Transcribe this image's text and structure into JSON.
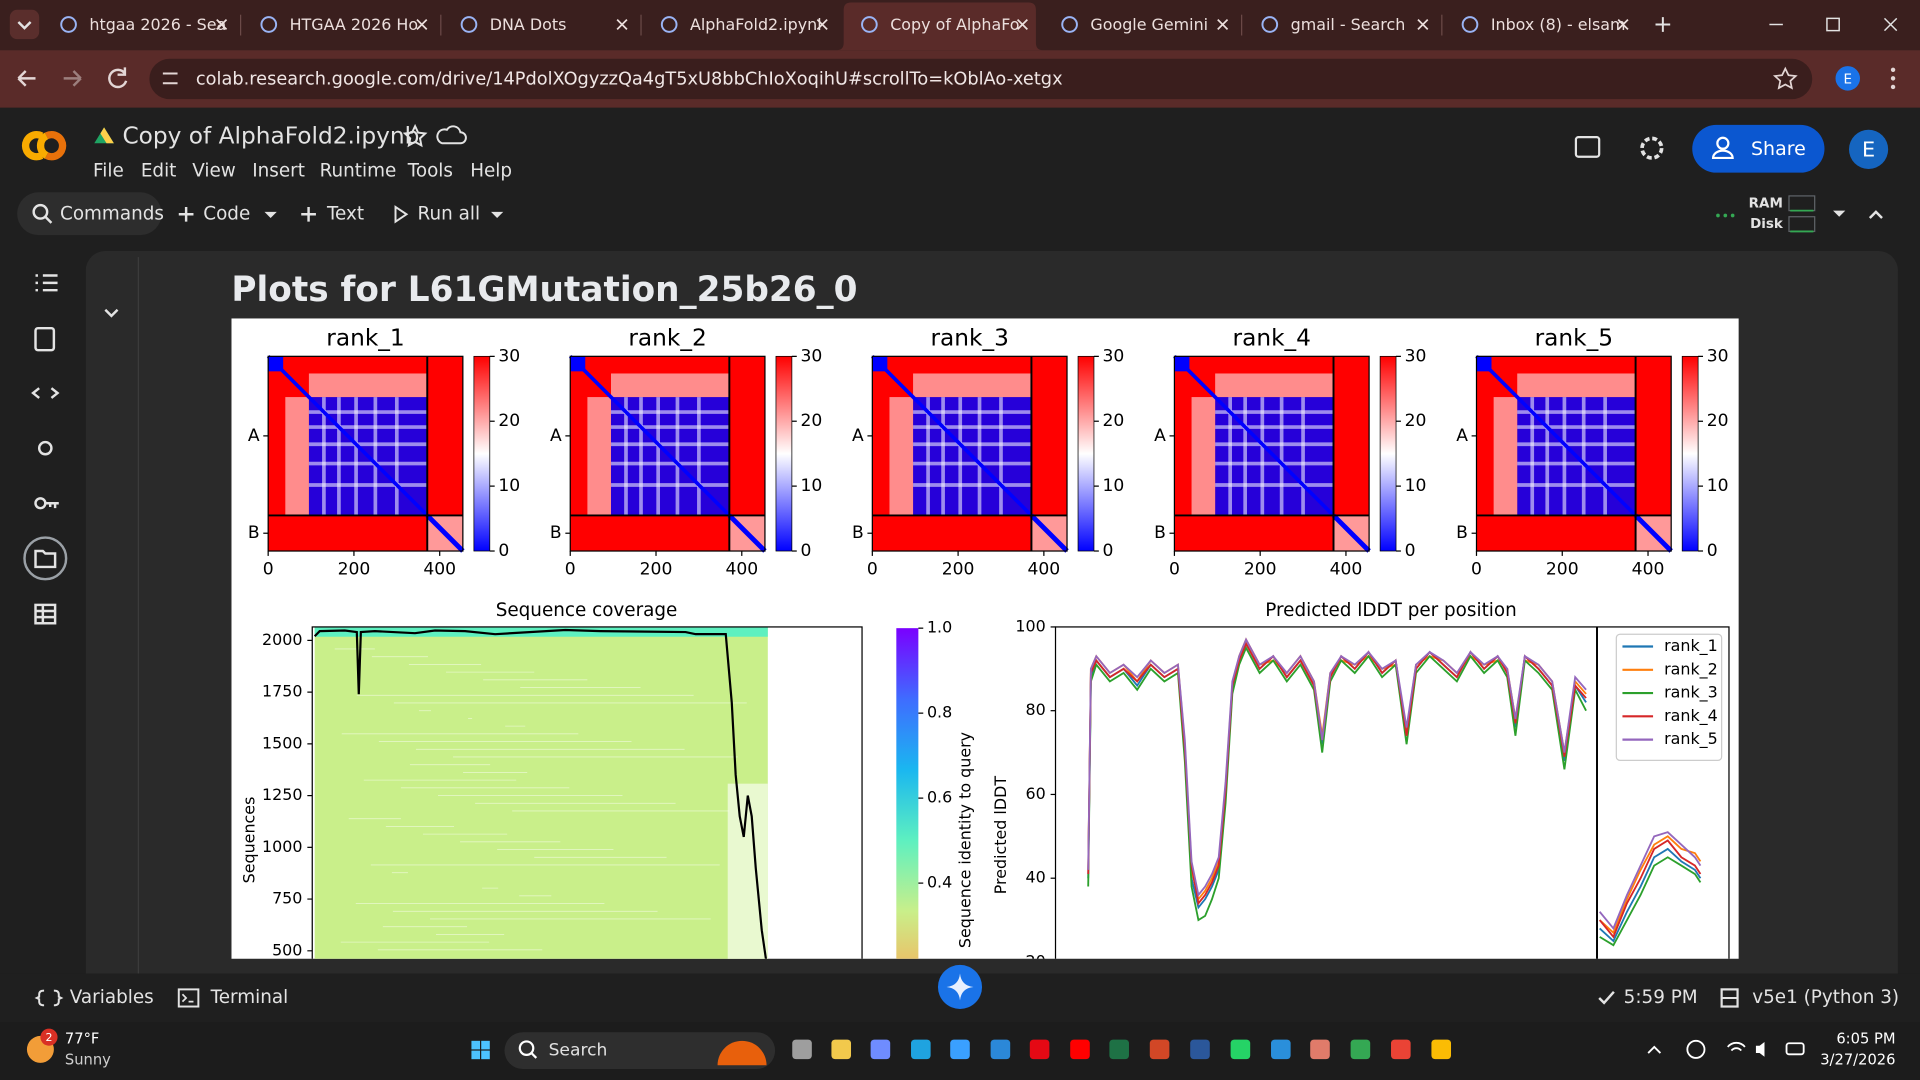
{
  "browser": {
    "tabs": [
      {
        "title": "htgaa 2026 - Sea"
      },
      {
        "title": "HTGAA 2026 Ho"
      },
      {
        "title": "DNA Dots"
      },
      {
        "title": "AlphaFold2.ipynl"
      },
      {
        "title": "Copy of AlphaFo",
        "active": true
      },
      {
        "title": "Google Gemini"
      },
      {
        "title": "gmail - Search"
      },
      {
        "title": "Inbox (8) - elsam"
      }
    ],
    "url": "colab.research.google.com/drive/14PdolXOgyzzQa4gT5xU8bbChIoXoqihU#scrollTo=kOblAo-xetgx",
    "profile": "E"
  },
  "colab": {
    "title": "Copy of AlphaFold2.ipynb",
    "menu": [
      "File",
      "Edit",
      "View",
      "Insert",
      "Runtime",
      "Tools",
      "Help"
    ],
    "share": "Share",
    "avatar": "E",
    "toolbar": {
      "commands": "Commands",
      "code": "Code",
      "text": "Text",
      "run_all": "Run all",
      "ram": "RAM",
      "disk": "Disk"
    }
  },
  "output": {
    "heading": "Plots for L61GMutation_25b26_0"
  },
  "chart_data": [
    {
      "type": "heatmap",
      "title": "rank_1",
      "xlim": [
        0,
        454
      ],
      "xticks": [
        0,
        200,
        400
      ],
      "row_labels": [
        "A",
        "B"
      ],
      "chain_break": 371,
      "colorbar": {
        "ylim": [
          0,
          30
        ],
        "yticks": [
          0,
          10,
          20,
          30
        ],
        "colors": [
          "#0000ff",
          "#ffffff",
          "#ff0000"
        ]
      }
    },
    {
      "type": "heatmap",
      "title": "rank_2",
      "xlim": [
        0,
        454
      ],
      "xticks": [
        0,
        200,
        400
      ],
      "row_labels": [
        "A",
        "B"
      ],
      "chain_break": 371,
      "colorbar": {
        "ylim": [
          0,
          30
        ],
        "yticks": [
          0,
          10,
          20,
          30
        ],
        "colors": [
          "#0000ff",
          "#ffffff",
          "#ff0000"
        ]
      }
    },
    {
      "type": "heatmap",
      "title": "rank_3",
      "xlim": [
        0,
        454
      ],
      "xticks": [
        0,
        200,
        400
      ],
      "row_labels": [
        "A",
        "B"
      ],
      "chain_break": 371,
      "colorbar": {
        "ylim": [
          0,
          30
        ],
        "yticks": [
          0,
          10,
          20,
          30
        ],
        "colors": [
          "#0000ff",
          "#ffffff",
          "#ff0000"
        ]
      }
    },
    {
      "type": "heatmap",
      "title": "rank_4",
      "xlim": [
        0,
        454
      ],
      "xticks": [
        0,
        200,
        400
      ],
      "row_labels": [
        "A",
        "B"
      ],
      "chain_break": 371,
      "colorbar": {
        "ylim": [
          0,
          30
        ],
        "yticks": [
          0,
          10,
          20,
          30
        ],
        "colors": [
          "#0000ff",
          "#ffffff",
          "#ff0000"
        ]
      }
    },
    {
      "type": "heatmap",
      "title": "rank_5",
      "xlim": [
        0,
        454
      ],
      "xticks": [
        0,
        200,
        400
      ],
      "row_labels": [
        "A",
        "B"
      ],
      "chain_break": 371,
      "colorbar": {
        "ylim": [
          0,
          30
        ],
        "yticks": [
          0,
          10,
          20,
          30
        ],
        "colors": [
          "#0000ff",
          "#ffffff",
          "#ff0000"
        ]
      }
    },
    {
      "type": "coverage",
      "title": "Sequence coverage",
      "ylabel": "Sequences",
      "xlim": [
        0,
        546
      ],
      "ylim": [
        0,
        2065
      ],
      "yticks": [
        500,
        750,
        1000,
        1250,
        1500,
        1750,
        2000
      ],
      "x": [
        0,
        5,
        30,
        42,
        44,
        46,
        60,
        100,
        120,
        150,
        180,
        250,
        285,
        370,
        380,
        410,
        416,
        420,
        424,
        428,
        432,
        436,
        440,
        446,
        452
      ],
      "values": [
        2020,
        2045,
        2048,
        2040,
        1740,
        2040,
        2045,
        2035,
        2048,
        2045,
        2030,
        2050,
        2045,
        2040,
        2030,
        2030,
        1700,
        1350,
        1150,
        1050,
        1250,
        1150,
        900,
        600,
        400
      ],
      "color": "#000000",
      "colorbar": {
        "label": "Sequence identity to query",
        "ylim": [
          0,
          1
        ],
        "yticks": [
          0.4,
          0.6,
          0.8,
          {
            "value": 1,
            "label": "1.0"
          }
        ],
        "colors": [
          "#e8402a",
          "#f7b05b",
          "#c9ef8a",
          "#5ef0c0",
          "#1ab7f0",
          "#3f6cff",
          "#7a00ff"
        ]
      }
    },
    {
      "type": "line",
      "title": "Predicted lDDT per position",
      "ylabel": "Predicted lDDT",
      "xlim": [
        -20,
        475
      ],
      "ylim": [
        20,
        100
      ],
      "yticks": [
        20,
        40,
        60,
        80,
        100
      ],
      "chain_break": 378,
      "x": [
        4,
        6,
        10,
        20,
        30,
        40,
        50,
        60,
        70,
        75,
        80,
        85,
        90,
        95,
        100,
        105,
        110,
        115,
        120,
        130,
        140,
        150,
        160,
        170,
        176,
        182,
        190,
        200,
        210,
        220,
        230,
        238,
        245,
        255,
        265,
        275,
        285,
        295,
        305,
        312,
        318,
        325,
        335,
        345,
        354,
        362,
        370,
        376,
        380,
        390,
        400,
        410,
        420,
        430,
        440,
        450,
        454
      ],
      "series": [
        {
          "name": "rank_1",
          "color": "#1f77b4",
          "values": [
            40,
            88,
            92,
            88,
            90,
            86,
            91,
            88,
            90,
            70,
            40,
            33,
            35,
            38,
            42,
            60,
            85,
            92,
            96,
            90,
            93,
            88,
            92,
            86,
            72,
            88,
            93,
            90,
            94,
            89,
            92,
            74,
            90,
            94,
            91,
            88,
            94,
            90,
            93,
            89,
            76,
            93,
            90,
            86,
            68,
            86,
            82,
            null,
            28,
            25,
            32,
            38,
            45,
            47,
            44,
            42,
            40
          ]
        },
        {
          "name": "rank_2",
          "color": "#ff7f0e",
          "values": [
            42,
            90,
            93,
            89,
            91,
            87,
            92,
            89,
            91,
            72,
            42,
            35,
            37,
            40,
            44,
            62,
            86,
            93,
            97,
            91,
            92,
            89,
            93,
            87,
            74,
            89,
            92,
            91,
            93,
            90,
            91,
            75,
            91,
            93,
            92,
            89,
            93,
            91,
            92,
            90,
            78,
            92,
            91,
            87,
            70,
            87,
            84,
            null,
            30,
            27,
            35,
            42,
            48,
            50,
            47,
            46,
            44
          ]
        },
        {
          "name": "rank_3",
          "color": "#2ca02c",
          "values": [
            38,
            87,
            91,
            87,
            89,
            85,
            90,
            87,
            89,
            68,
            38,
            30,
            31,
            35,
            40,
            58,
            84,
            91,
            95,
            89,
            92,
            87,
            91,
            85,
            70,
            87,
            92,
            89,
            93,
            88,
            91,
            72,
            89,
            93,
            90,
            87,
            93,
            89,
            92,
            88,
            74,
            92,
            89,
            85,
            66,
            85,
            80,
            null,
            26,
            24,
            30,
            36,
            43,
            45,
            43,
            41,
            39
          ]
        },
        {
          "name": "rank_4",
          "color": "#d62728",
          "values": [
            41,
            89,
            92,
            88,
            90,
            87,
            91,
            88,
            90,
            71,
            43,
            34,
            36,
            39,
            43,
            61,
            86,
            92,
            96,
            90,
            93,
            88,
            92,
            86,
            73,
            88,
            93,
            90,
            94,
            89,
            92,
            74,
            90,
            94,
            91,
            88,
            94,
            90,
            93,
            89,
            77,
            93,
            90,
            86,
            69,
            86,
            83,
            null,
            30,
            26,
            34,
            40,
            47,
            49,
            45,
            43,
            41
          ]
        },
        {
          "name": "rank_5",
          "color": "#9467bd",
          "values": [
            42,
            90,
            93,
            89,
            91,
            88,
            92,
            89,
            91,
            73,
            44,
            36,
            38,
            41,
            45,
            63,
            87,
            93,
            97,
            91,
            93,
            89,
            93,
            87,
            73,
            89,
            93,
            91,
            94,
            90,
            92,
            76,
            91,
            94,
            92,
            89,
            94,
            91,
            93,
            90,
            78,
            93,
            91,
            87,
            70,
            88,
            85,
            null,
            32,
            28,
            36,
            43,
            50,
            51,
            48,
            45,
            43
          ]
        }
      ],
      "legend": "upper right"
    }
  ],
  "status_bar": {
    "variables": "Variables",
    "terminal": "Terminal",
    "last_run": "5:59 PM",
    "runtime": "v5e1 (Python 3)"
  },
  "taskbar": {
    "weather_badge": "2",
    "temperature": "77°F",
    "condition": "Sunny",
    "search": "Search",
    "time": "6:05 PM",
    "date": "3/27/2026"
  }
}
